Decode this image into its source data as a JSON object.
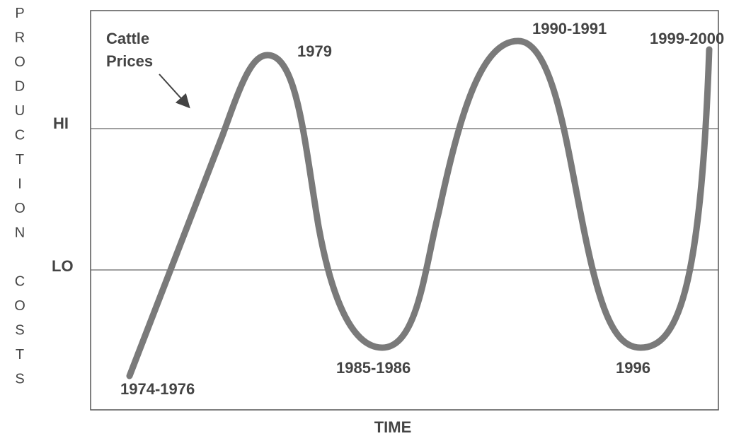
{
  "axis": {
    "y_label": "PRODUCTION COSTS",
    "x_label": "TIME"
  },
  "levels": {
    "high": "HI",
    "low": "LO"
  },
  "annotation": {
    "line1": "Cattle",
    "line2": "Prices"
  },
  "points": [
    "1974-1976",
    "1979",
    "1985-1986",
    "1990-1991",
    "1996",
    "1999-2000"
  ]
}
